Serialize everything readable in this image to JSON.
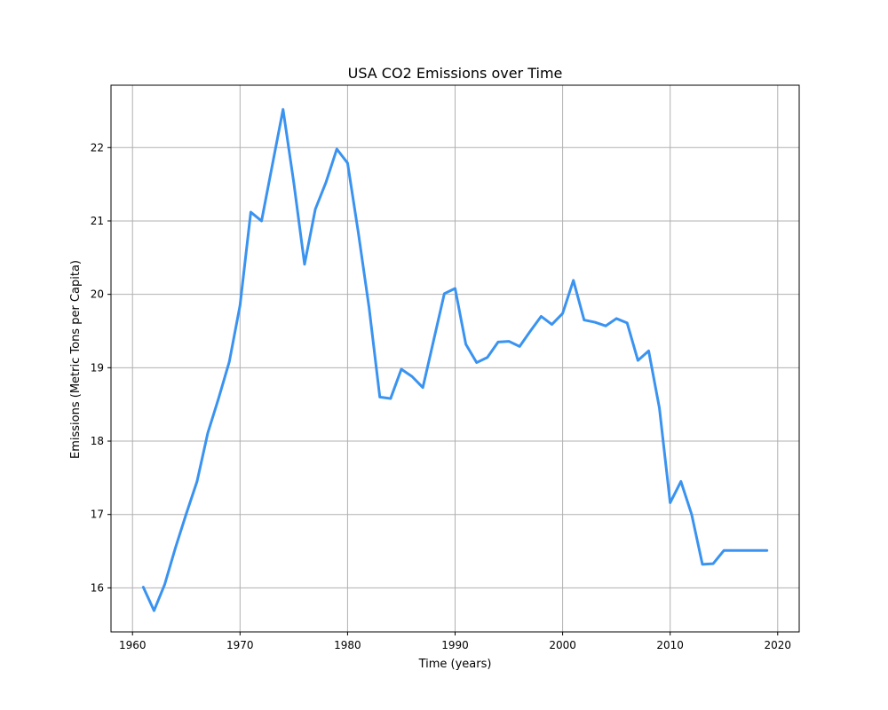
{
  "chart_data": {
    "type": "line",
    "title": "USA CO2 Emissions over Time",
    "xlabel": "Time (years)",
    "ylabel": "Emissions (Metric Tons per Capita)",
    "xlim": [
      1958,
      2022
    ],
    "ylim": [
      15.4,
      22.85
    ],
    "xticks": [
      1960,
      1970,
      1980,
      1990,
      2000,
      2010,
      2020
    ],
    "yticks": [
      16,
      17,
      18,
      19,
      20,
      21,
      22
    ],
    "grid": true,
    "series": [
      {
        "color": "#3a93f0",
        "x": [
          1961,
          1962,
          1963,
          1964,
          1965,
          1966,
          1967,
          1968,
          1969,
          1970,
          1971,
          1972,
          1973,
          1974,
          1975,
          1976,
          1977,
          1978,
          1979,
          1980,
          1981,
          1982,
          1983,
          1984,
          1985,
          1986,
          1987,
          1988,
          1989,
          1990,
          1991,
          1992,
          1993,
          1994,
          1995,
          1996,
          1997,
          1998,
          1999,
          2000,
          2001,
          2002,
          2003,
          2004,
          2005,
          2006,
          2007,
          2008,
          2009,
          2010,
          2011,
          2012,
          2013,
          2014,
          2015,
          2016,
          2017,
          2018,
          2019
        ],
        "y": [
          16.01,
          15.69,
          16.05,
          16.55,
          17.01,
          17.45,
          18.11,
          18.58,
          19.08,
          19.85,
          21.12,
          21.0,
          21.76,
          22.52,
          21.52,
          20.41,
          21.16,
          21.53,
          21.98,
          21.79,
          20.84,
          19.82,
          18.6,
          18.58,
          18.98,
          18.88,
          18.73,
          19.37,
          20.01,
          20.08,
          19.32,
          19.07,
          19.14,
          19.35,
          19.36,
          19.29,
          19.5,
          19.7,
          19.59,
          19.74,
          20.19,
          19.65,
          19.62,
          19.57,
          19.67,
          19.61,
          19.1,
          19.23,
          18.45,
          17.16,
          17.45,
          17.0,
          16.32,
          16.33,
          16.51,
          16.51,
          16.51,
          16.51,
          16.51
        ]
      }
    ]
  }
}
